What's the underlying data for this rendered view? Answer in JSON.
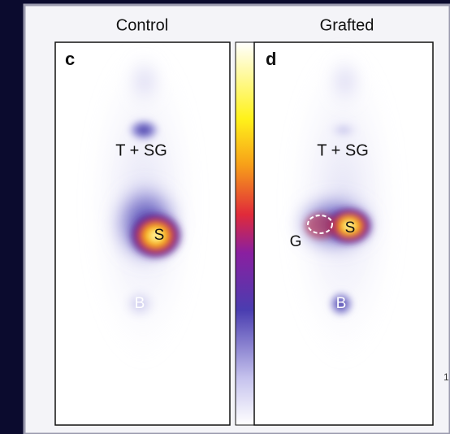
{
  "panels": [
    {
      "title": "Control",
      "letter": "c",
      "labels": {
        "thyroid": "T + SG",
        "stomach": "S",
        "bladder": "B"
      }
    },
    {
      "title": "Grafted",
      "letter": "d",
      "labels": {
        "thyroid": "T + SG",
        "stomach": "S",
        "graft": "G",
        "bladder": "B"
      }
    }
  ],
  "edge_text": "1"
}
